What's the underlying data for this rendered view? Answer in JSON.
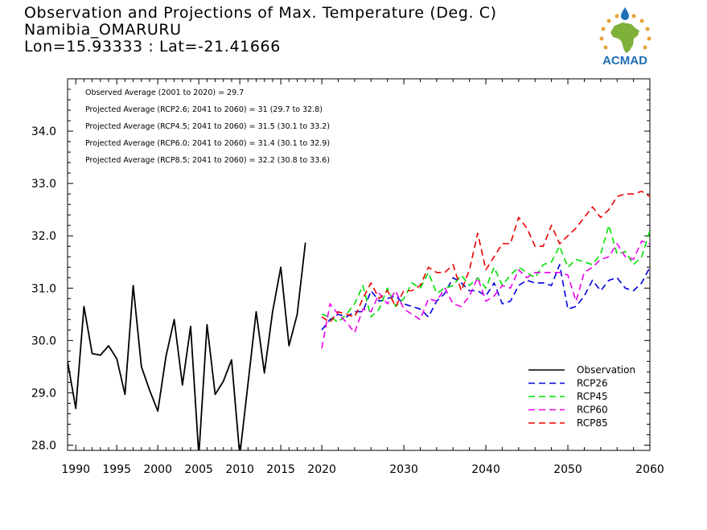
{
  "header": {
    "title_line1": "Observation and Projections of Max. Temperature (Deg. C)",
    "title_line2": "Namibia_OMARURU",
    "title_line3": "Lon=15.93333 : Lat=-21.41666"
  },
  "logo": {
    "text": "ACMAD",
    "colors": {
      "africa": "#7fb03a",
      "accent": "#e6a23c",
      "blue": "#1e6fb5"
    }
  },
  "chart_data": {
    "type": "line",
    "title": "Observation and Projections of Max. Temperature (Deg. C)",
    "xlim": [
      1989,
      2060
    ],
    "ylim": [
      27.9,
      35.0
    ],
    "x_ticks": [
      1990,
      1995,
      2000,
      2005,
      2010,
      2015,
      2020,
      2030,
      2040,
      2050,
      2060
    ],
    "y_ticks": [
      28.0,
      29.0,
      30.0,
      31.0,
      32.0,
      33.0,
      34.0
    ],
    "annotations": [
      "Observed Average (2001 to 2020) = 29.7",
      "Projected Average (RCP2.6; 2041 to 2060) = 31 (29.7 to 32.8)",
      "Projected Average (RCP4.5; 2041 to 2060) = 31.5 (30.1 to 33.2)",
      "Projected Average (RCP6.0; 2041 to 2060) = 31.4 (30.1 to 32.9)",
      "Projected Average (RCP8.5; 2041 to 2060) = 32.2 (30.8 to 33.6)"
    ],
    "legend_position": "bottom-right",
    "series": [
      {
        "name": "Observation",
        "color": "#000000",
        "dashed": false,
        "x": [
          1989,
          1990,
          1991,
          1992,
          1993,
          1994,
          1995,
          1996,
          1997,
          1998,
          1999,
          2000,
          2001,
          2002,
          2003,
          2004,
          2005,
          2006,
          2007,
          2008,
          2009,
          2010,
          2011,
          2012,
          2013,
          2014,
          2015,
          2016,
          2017,
          2018,
          2019
        ],
        "y": [
          29.6,
          28.7,
          30.65,
          29.75,
          29.72,
          29.9,
          29.65,
          28.97,
          31.05,
          29.5,
          29.05,
          28.65,
          29.7,
          30.4,
          29.15,
          30.27,
          27.8,
          30.3,
          28.97,
          29.22,
          29.63,
          27.8,
          29.17,
          30.55,
          29.38,
          30.55,
          31.4,
          29.9,
          30.5,
          31.87,
          null
        ]
      },
      {
        "name": "RCP26",
        "color": "#0000dd",
        "dashed": true,
        "x": [
          2020,
          2021,
          2022,
          2023,
          2024,
          2025,
          2026,
          2027,
          2028,
          2029,
          2030,
          2031,
          2032,
          2033,
          2034,
          2035,
          2036,
          2037,
          2038,
          2039,
          2040,
          2041,
          2042,
          2043,
          2044,
          2045,
          2046,
          2047,
          2048,
          2049,
          2050,
          2051,
          2052,
          2053,
          2054,
          2055,
          2056,
          2057,
          2058,
          2059,
          2060
        ],
        "y": [
          30.2,
          30.4,
          30.5,
          30.45,
          30.55,
          30.55,
          30.95,
          30.75,
          30.8,
          30.85,
          30.7,
          30.65,
          30.6,
          30.45,
          30.75,
          30.9,
          31.2,
          31.1,
          30.95,
          30.95,
          30.85,
          31.1,
          30.7,
          30.75,
          31.05,
          31.15,
          31.1,
          31.1,
          31.05,
          31.45,
          30.6,
          30.65,
          30.85,
          31.15,
          30.95,
          31.15,
          31.2,
          31.0,
          30.95,
          31.1,
          31.4
        ]
      },
      {
        "name": "RCP45",
        "color": "#00e000",
        "dashed": true,
        "x": [
          2020,
          2021,
          2022,
          2023,
          2024,
          2025,
          2026,
          2027,
          2028,
          2029,
          2030,
          2031,
          2032,
          2033,
          2034,
          2035,
          2036,
          2037,
          2038,
          2039,
          2040,
          2041,
          2042,
          2043,
          2044,
          2045,
          2046,
          2047,
          2048,
          2049,
          2050,
          2051,
          2052,
          2053,
          2054,
          2055,
          2056,
          2057,
          2058,
          2059,
          2060
        ],
        "y": [
          30.5,
          30.45,
          30.35,
          30.5,
          30.7,
          31.05,
          30.45,
          30.6,
          31.0,
          30.65,
          30.8,
          31.1,
          31.0,
          31.3,
          30.9,
          31.0,
          31.05,
          31.25,
          31.05,
          31.2,
          31.0,
          31.4,
          31.05,
          31.25,
          31.4,
          31.3,
          31.2,
          31.45,
          31.5,
          31.8,
          31.4,
          31.55,
          31.5,
          31.45,
          31.65,
          32.2,
          31.65,
          31.7,
          31.45,
          31.6,
          32.1
        ]
      },
      {
        "name": "RCP60",
        "color": "#ee00ee",
        "dashed": true,
        "x": [
          2020,
          2021,
          2022,
          2023,
          2024,
          2025,
          2026,
          2027,
          2028,
          2029,
          2030,
          2031,
          2032,
          2033,
          2034,
          2035,
          2036,
          2037,
          2038,
          2039,
          2040,
          2041,
          2042,
          2043,
          2044,
          2045,
          2046,
          2047,
          2048,
          2049,
          2050,
          2051,
          2052,
          2053,
          2054,
          2055,
          2056,
          2057,
          2058,
          2059,
          2060
        ],
        "y": [
          29.85,
          30.7,
          30.5,
          30.35,
          30.15,
          30.6,
          30.55,
          30.9,
          30.7,
          30.95,
          30.6,
          30.5,
          30.4,
          30.8,
          30.75,
          31.0,
          30.7,
          30.65,
          30.85,
          31.2,
          30.75,
          30.85,
          31.05,
          31.0,
          31.35,
          31.2,
          31.3,
          31.3,
          31.3,
          31.3,
          31.25,
          30.75,
          31.3,
          31.4,
          31.55,
          31.6,
          31.85,
          31.6,
          31.55,
          31.9,
          31.85
        ]
      },
      {
        "name": "RCP85",
        "color": "#ee0000",
        "dashed": true,
        "x": [
          2020,
          2021,
          2022,
          2023,
          2024,
          2025,
          2026,
          2027,
          2028,
          2029,
          2030,
          2031,
          2032,
          2033,
          2034,
          2035,
          2036,
          2037,
          2038,
          2039,
          2040,
          2041,
          2042,
          2043,
          2044,
          2045,
          2046,
          2047,
          2048,
          2049,
          2050,
          2051,
          2052,
          2053,
          2054,
          2055,
          2056,
          2057,
          2058,
          2059,
          2060
        ],
        "y": [
          30.45,
          30.35,
          30.55,
          30.5,
          30.45,
          30.8,
          31.1,
          30.8,
          30.95,
          30.65,
          30.95,
          30.95,
          31.05,
          31.4,
          31.3,
          31.3,
          31.45,
          30.95,
          31.35,
          32.05,
          31.35,
          31.6,
          31.85,
          31.85,
          32.35,
          32.15,
          31.8,
          31.8,
          32.2,
          31.85,
          32.0,
          32.15,
          32.35,
          32.55,
          32.35,
          32.5,
          32.75,
          32.8,
          32.8,
          32.85,
          32.75
        ]
      }
    ]
  }
}
